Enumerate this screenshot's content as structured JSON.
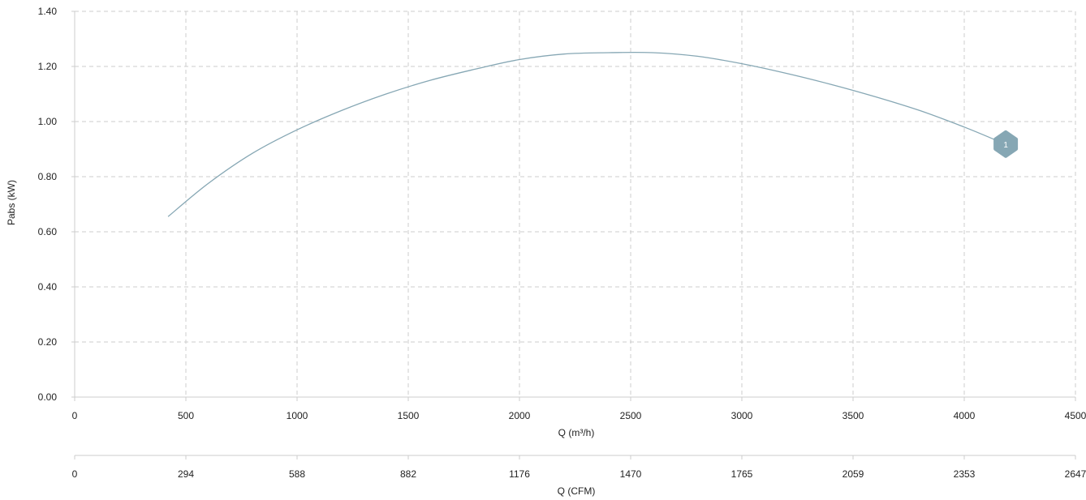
{
  "chart_data": {
    "type": "line",
    "xlabel": "Q (m³/h)",
    "x2label": "Q (CFM)",
    "ylabel": "Pabs (kW)",
    "xlim": [
      0,
      4500
    ],
    "ylim": [
      0,
      1.4
    ],
    "x_ticks": [
      "0",
      "500",
      "1000",
      "1500",
      "2000",
      "2500",
      "3000",
      "3500",
      "4000",
      "4500"
    ],
    "x2_ticks": [
      "0",
      "294",
      "588",
      "882",
      "1176",
      "1470",
      "1765",
      "2059",
      "2353",
      "2647"
    ],
    "y_ticks": [
      "0.00",
      "0.20",
      "0.40",
      "0.60",
      "0.80",
      "1.00",
      "1.20",
      "1.40"
    ],
    "grid": true,
    "colors": {
      "series": "#86a7b4",
      "grid": "#cccccc",
      "axis": "#cccccc"
    },
    "series": [
      {
        "marker_label": "1",
        "x": [
          420,
          600,
          800,
          1000,
          1200,
          1400,
          1600,
          1800,
          2000,
          2200,
          2400,
          2600,
          2800,
          3000,
          3200,
          3400,
          3600,
          3800,
          4000,
          4150
        ],
        "y": [
          0.655,
          0.775,
          0.885,
          0.97,
          1.04,
          1.1,
          1.15,
          1.19,
          1.225,
          1.245,
          1.25,
          1.25,
          1.237,
          1.21,
          1.175,
          1.135,
          1.09,
          1.04,
          0.98,
          0.93
        ]
      }
    ]
  }
}
